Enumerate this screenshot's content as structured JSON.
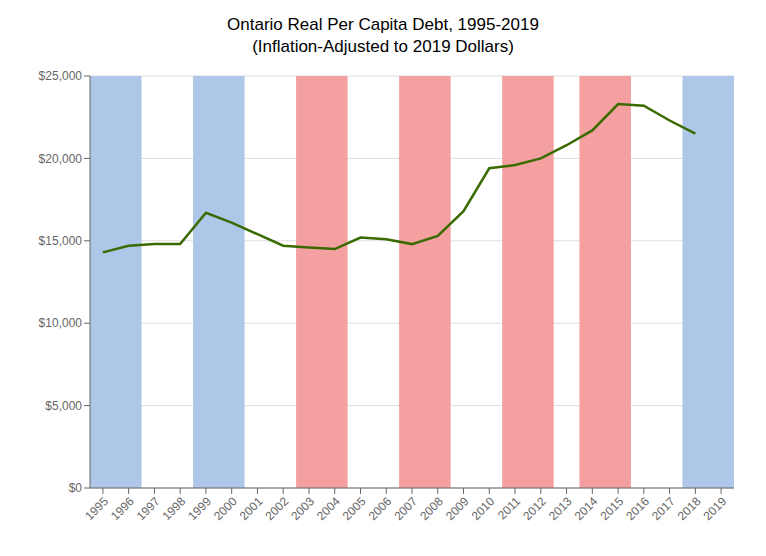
{
  "chart_data": {
    "type": "line",
    "title": "Ontario Real Per Capita Debt, 1995-2019\n(Inflation-Adjusted to 2019 Dollars)",
    "x": [
      1995,
      1996,
      1997,
      1998,
      1999,
      2000,
      2001,
      2002,
      2003,
      2004,
      2005,
      2006,
      2007,
      2008,
      2009,
      2010,
      2011,
      2012,
      2013,
      2014,
      2015,
      2016,
      2017,
      2018
    ],
    "values": [
      14300,
      14700,
      14800,
      14800,
      16700,
      16100,
      15400,
      14700,
      14600,
      14500,
      15200,
      15100,
      14800,
      15300,
      16800,
      19400,
      19600,
      20000,
      20800,
      21700,
      23300,
      23200,
      22300,
      21500
    ],
    "color": "#3A6B00",
    "xlim": [
      1994.5,
      2019.5
    ],
    "xticks": [
      1995,
      1996,
      1997,
      1998,
      1999,
      2000,
      2001,
      2002,
      2003,
      2004,
      2005,
      2006,
      2007,
      2008,
      2009,
      2010,
      2011,
      2012,
      2013,
      2014,
      2015,
      2016,
      2017,
      2018,
      2019
    ],
    "ylim": [
      0,
      25000
    ],
    "yticks": [
      {
        "value": 0,
        "label": "$0"
      },
      {
        "value": 5000,
        "label": "$5,000"
      },
      {
        "value": 10000,
        "label": "$10,000"
      },
      {
        "value": 15000,
        "label": "$15,000"
      },
      {
        "value": 20000,
        "label": "$20,000"
      },
      {
        "value": 25000,
        "label": "$25,000"
      }
    ],
    "grid": true,
    "bands": [
      {
        "from": 1994.5,
        "to": 1996.5,
        "color": "#AEC6E8"
      },
      {
        "from": 1998.5,
        "to": 2000.5,
        "color": "#AEC6E8"
      },
      {
        "from": 2017.5,
        "to": 2019.5,
        "color": "#AEC6E8"
      },
      {
        "from": 2002.5,
        "to": 2004.5,
        "color": "#F4A0A0"
      },
      {
        "from": 2006.5,
        "to": 2008.5,
        "color": "#F4A0A0"
      },
      {
        "from": 2010.5,
        "to": 2012.5,
        "color": "#F4A0A0"
      },
      {
        "from": 2013.5,
        "to": 2015.5,
        "color": "#F4A0A0"
      }
    ]
  }
}
